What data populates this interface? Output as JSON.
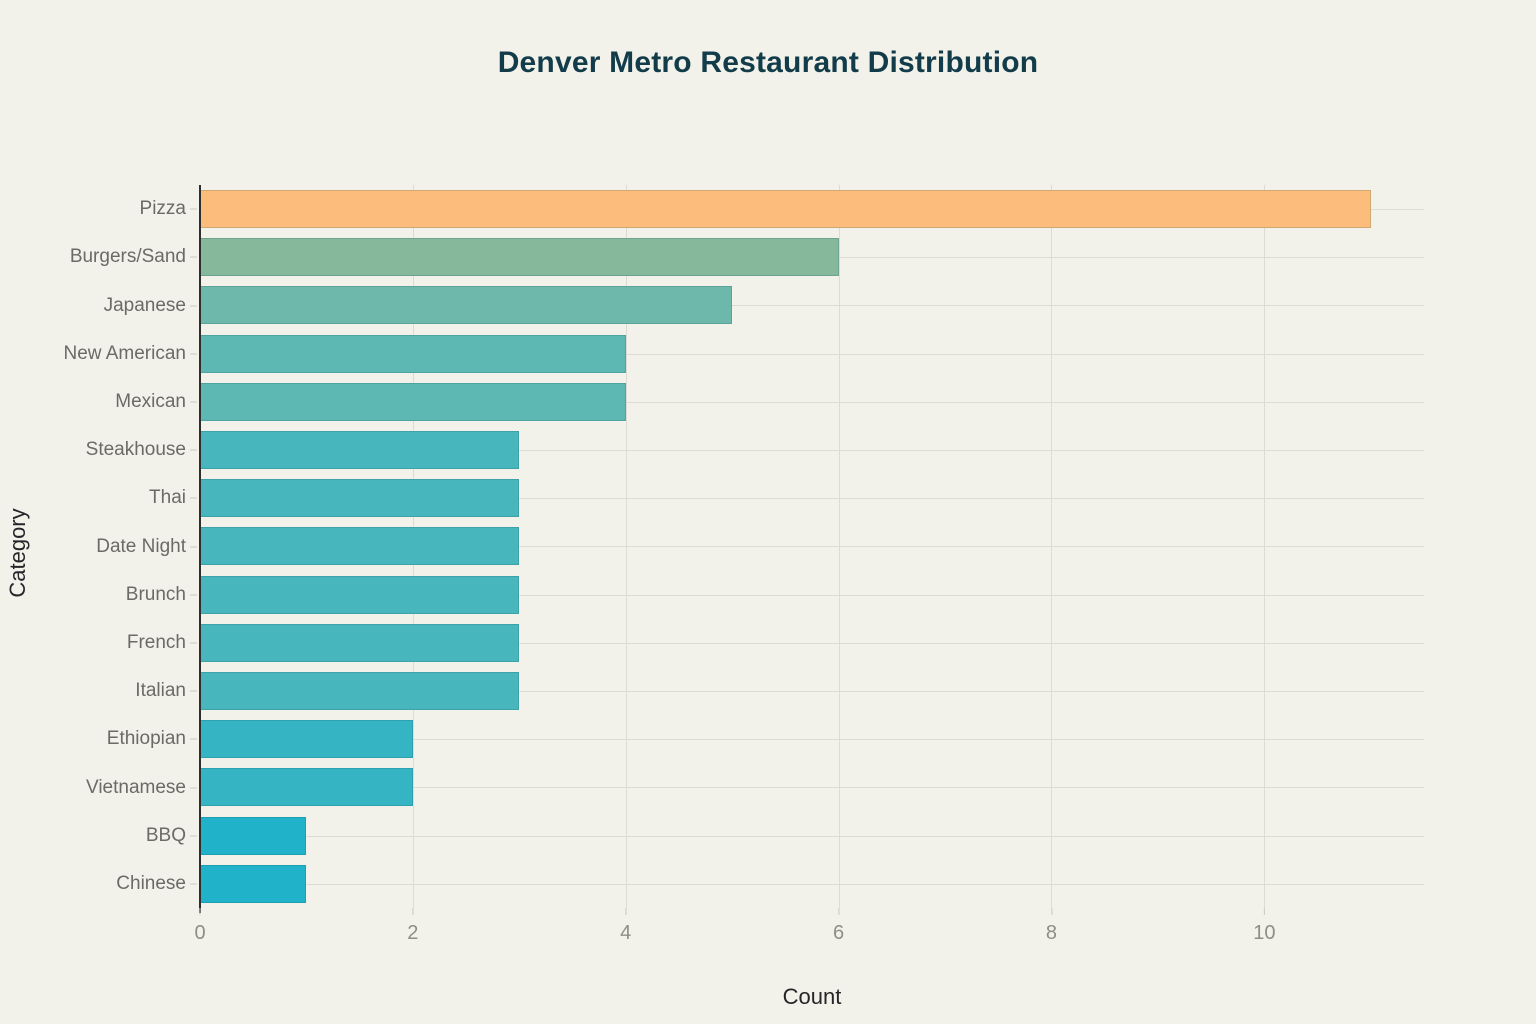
{
  "figure": {
    "background": "#f2f2ea",
    "title_color": "#123c4a"
  },
  "chart_data": {
    "type": "bar",
    "orientation": "horizontal",
    "title": "Denver Metro Restaurant Distribution",
    "xlabel": "Count",
    "ylabel": "Category",
    "categories": [
      "Pizza",
      "Burgers/Sand",
      "Japanese",
      "New American",
      "Mexican",
      "Steakhouse",
      "Thai",
      "Date Night",
      "Brunch",
      "French",
      "Italian",
      "Ethiopian",
      "Vietnamese",
      "BBQ",
      "Chinese"
    ],
    "values": [
      11,
      6,
      5,
      4,
      4,
      3,
      3,
      3,
      3,
      3,
      3,
      2,
      2,
      1,
      1
    ],
    "bar_colors": [
      "#fcbd7c",
      "#86b89c",
      "#6db7ab",
      "#5db8b4",
      "#5db8b4",
      "#48b6bd",
      "#48b6bd",
      "#48b6bd",
      "#48b6bd",
      "#48b6bd",
      "#48b6bd",
      "#35b4c4",
      "#35b4c4",
      "#20b2c9",
      "#20b2c9"
    ],
    "xlim": [
      0,
      11.5
    ],
    "xticks": [
      0,
      2,
      4,
      6,
      8,
      10
    ],
    "grid": true,
    "legend": "none",
    "colors": {
      "grid": "#dedcd2",
      "axis_line": "#2e2e2e",
      "tick_label": "#8e8e87",
      "category_label": "#6b6b66",
      "axis_title": "#26262a"
    }
  }
}
